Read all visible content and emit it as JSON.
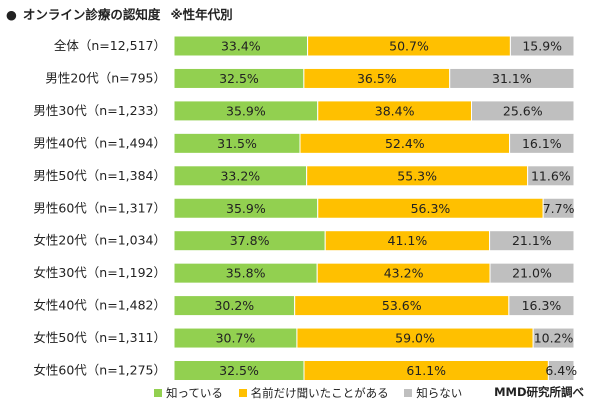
{
  "header": {
    "bullet": "●",
    "title": "オンライン診療の認知度",
    "subtitle": "※性年代別"
  },
  "colors": {
    "know": "#92d050",
    "heard": "#ffc000",
    "unknown": "#bfbfbf"
  },
  "chart_data": {
    "type": "bar",
    "orientation": "horizontal",
    "stacked": "100%",
    "title": "オンライン診療の認知度",
    "subtitle": "※性年代別",
    "categories": [
      "全体（n=12,517）",
      "男性20代（n=795）",
      "男性30代（n=1,233）",
      "男性40代（n=1,494）",
      "男性50代（n=1,384）",
      "男性60代（n=1,317）",
      "女性20代（n=1,034）",
      "女性30代（n=1,192）",
      "女性40代（n=1,482）",
      "女性50代（n=1,311）",
      "女性60代（n=1,275）"
    ],
    "series": [
      {
        "name": "知っている",
        "color": "#92d050",
        "values": [
          33.4,
          32.5,
          35.9,
          31.5,
          33.2,
          35.9,
          37.8,
          35.8,
          30.2,
          30.7,
          32.5
        ]
      },
      {
        "name": "名前だけ聞いたことがある",
        "color": "#ffc000",
        "values": [
          50.7,
          36.5,
          38.4,
          52.4,
          55.3,
          56.3,
          41.1,
          43.2,
          53.6,
          59.0,
          61.1
        ]
      },
      {
        "name": "知らない",
        "color": "#bfbfbf",
        "values": [
          15.9,
          31.1,
          25.6,
          16.1,
          11.6,
          7.7,
          21.1,
          21.0,
          16.3,
          10.2,
          6.4
        ]
      }
    ],
    "unit": "%",
    "legend_position": "bottom",
    "source": "MMD研究所調べ"
  }
}
